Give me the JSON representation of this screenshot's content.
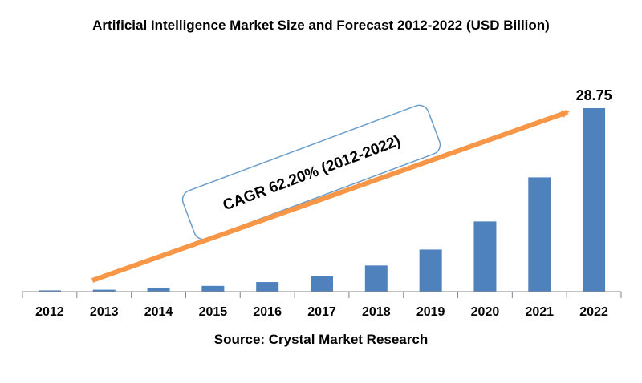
{
  "chart_data": {
    "type": "bar",
    "title": "Artificial Intelligence Market Size and Forecast 2012-2022 (USD Billion)",
    "categories": [
      "2012",
      "2013",
      "2014",
      "2015",
      "2016",
      "2017",
      "2018",
      "2019",
      "2020",
      "2021",
      "2022"
    ],
    "values": [
      0.2,
      0.3,
      0.6,
      0.9,
      1.5,
      2.4,
      4.1,
      6.6,
      11.0,
      17.9,
      28.75
    ],
    "data_labels": [
      {
        "index": 10,
        "text": "28.75"
      }
    ],
    "ylim": [
      0,
      29.5
    ],
    "grid": false,
    "bar_color": "#4F81BD",
    "annotation": {
      "text": "CAGR 62.20% (2012-2022)",
      "arrow_color": "#F79646"
    },
    "source": "Source: Crystal Market Research"
  }
}
